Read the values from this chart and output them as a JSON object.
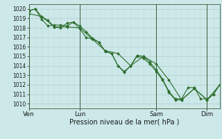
{
  "background_color": "#cce8e8",
  "grid_color_major": "#b0cccc",
  "grid_color_minor": "#c4dcdc",
  "line_color": "#2d6e2d",
  "xlabel": "Pression niveau de la mer( hPa )",
  "ylim": [
    1009.5,
    1020.5
  ],
  "yticks": [
    1010,
    1011,
    1012,
    1013,
    1014,
    1015,
    1016,
    1017,
    1018,
    1019,
    1020
  ],
  "xtick_labels": [
    "Ven",
    "Lun",
    "Sam",
    "Dim"
  ],
  "xtick_positions": [
    0,
    48,
    120,
    168
  ],
  "vlines": [
    0,
    48,
    120,
    168
  ],
  "series1_x": [
    0,
    6,
    12,
    18,
    24,
    30,
    36,
    42,
    48,
    54,
    60,
    66,
    72,
    78,
    84,
    90,
    96,
    102,
    108,
    114,
    120,
    126,
    132,
    138,
    144,
    150,
    156,
    162,
    168,
    174,
    180
  ],
  "series1_y": [
    1019.8,
    1020.0,
    1019.2,
    1018.8,
    1018.1,
    1018.0,
    1018.5,
    1018.6,
    1018.2,
    1017.6,
    1016.9,
    1016.5,
    1015.5,
    1015.3,
    1014.0,
    1013.3,
    1014.0,
    1015.1,
    1015.0,
    1014.4,
    1013.6,
    1012.6,
    1011.3,
    1010.5,
    1010.5,
    1011.7,
    1011.7,
    1010.5,
    1010.5,
    1011.0,
    1012.0
  ],
  "series2_x": [
    0,
    12,
    24,
    36,
    48,
    60,
    72,
    84,
    96,
    108,
    120,
    132,
    144,
    156,
    168,
    180
  ],
  "series2_y": [
    1019.5,
    1019.2,
    1018.1,
    1018.1,
    1018.0,
    1016.8,
    1015.6,
    1015.3,
    1014.0,
    1015.0,
    1014.2,
    1012.5,
    1010.4,
    1011.6,
    1010.4,
    1012.0
  ],
  "series3_x": [
    0,
    6,
    12,
    18,
    24,
    30,
    36,
    42,
    48,
    54,
    60,
    66,
    72,
    78,
    84,
    90,
    96,
    102,
    108,
    114,
    120,
    126,
    132,
    138,
    144,
    156,
    168,
    174,
    180
  ],
  "series3_y": [
    1019.8,
    1020.0,
    1018.9,
    1018.2,
    1018.3,
    1018.3,
    1018.2,
    1018.6,
    1017.9,
    1017.0,
    1016.8,
    1016.5,
    1015.5,
    1015.3,
    1014.0,
    1013.4,
    1014.0,
    1015.0,
    1014.8,
    1014.2,
    1013.4,
    1012.5,
    1011.2,
    1010.4,
    1010.4,
    1011.6,
    1010.4,
    1011.0,
    1012.0
  ],
  "total_hours": 180,
  "ytick_fontsize": 5.5,
  "xtick_fontsize": 6.5,
  "xlabel_fontsize": 7.0,
  "linewidth": 0.8,
  "markersize": 2.0
}
